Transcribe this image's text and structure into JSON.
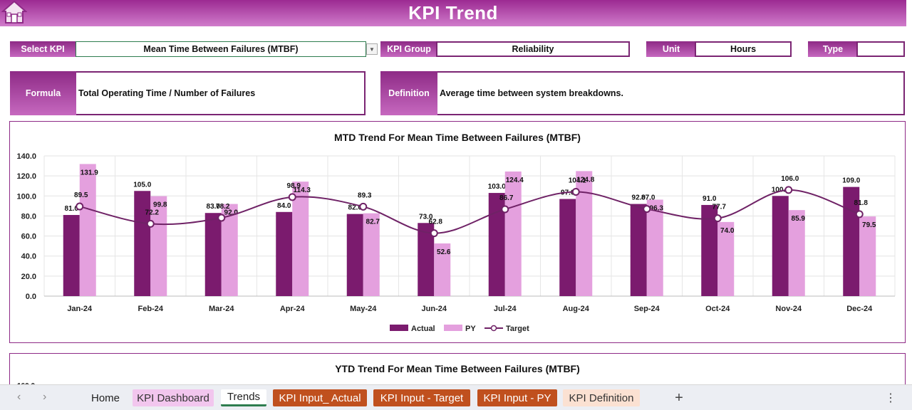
{
  "header": {
    "title": "KPI Trend"
  },
  "selectors": {
    "select_kpi_label": "Select KPI",
    "select_kpi_value": "Mean Time Between Failures (MTBF)",
    "kpi_group_label": "KPI Group",
    "kpi_group_value": "Reliability",
    "unit_label": "Unit",
    "unit_value": "Hours",
    "type_label": "Type",
    "type_value": ""
  },
  "formula": {
    "label": "Formula",
    "text": "Total Operating Time / Number of Failures"
  },
  "definition": {
    "label": "Definition",
    "text": "Average time between system breakdowns."
  },
  "mtd": {
    "title": "MTD Trend For Mean Time Between Failures (MTBF)"
  },
  "ytd": {
    "title": "YTD Trend For Mean Time Between Failures (MTBF)",
    "partial_tick": "160.0"
  },
  "legend": {
    "actual": "Actual",
    "py": "PY",
    "target": "Target"
  },
  "colors": {
    "actual": "#7b1b6e",
    "py": "#e4a0de",
    "target": "#6f2266",
    "accent": "#9c2a92"
  },
  "chart_data": {
    "type": "bar",
    "title": "MTD Trend For Mean Time Between Failures (MTBF)",
    "categories": [
      "Jan-24",
      "Feb-24",
      "Mar-24",
      "Apr-24",
      "May-24",
      "Jun-24",
      "Jul-24",
      "Aug-24",
      "Sep-24",
      "Oct-24",
      "Nov-24",
      "Dec-24"
    ],
    "series": [
      {
        "name": "Actual",
        "type": "bar",
        "values": [
          81.0,
          105.0,
          83.0,
          84.0,
          82.0,
          73.0,
          103.0,
          97.0,
          92.0,
          91.0,
          100.0,
          109.0
        ]
      },
      {
        "name": "PY",
        "type": "bar",
        "values": [
          131.9,
          99.8,
          92.0,
          114.3,
          82.7,
          52.6,
          124.4,
          124.8,
          96.3,
          74.0,
          85.9,
          79.5
        ]
      },
      {
        "name": "Target",
        "type": "line",
        "values": [
          89.5,
          72.2,
          78.2,
          98.9,
          89.3,
          62.8,
          86.7,
          104.1,
          87.0,
          77.7,
          106.0,
          81.8
        ]
      }
    ],
    "yticks": [
      "0.0",
      "20.0",
      "40.0",
      "60.0",
      "80.0",
      "100.0",
      "120.0",
      "140.0"
    ],
    "ylim": [
      0,
      140
    ],
    "grid": true,
    "legend": "bottom"
  },
  "tabs": {
    "home": "Home",
    "kpi_dashboard": "KPI Dashboard",
    "trends": "Trends",
    "kpi_input_actual": "KPI Input_ Actual",
    "kpi_input_target": "KPI Input - Target",
    "kpi_input_py": "KPI Input - PY",
    "kpi_definition": "KPI Definition",
    "add": "+",
    "more": "⋮"
  }
}
